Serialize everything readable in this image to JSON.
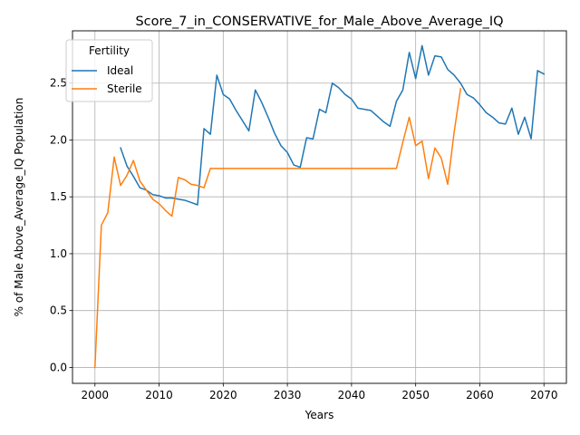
{
  "chart_data": {
    "type": "line",
    "title": "Score_7_in_CONSERVATIVE_for_Male_Above_Average_IQ",
    "xlabel": "Years",
    "ylabel": "% of Male Above_Average_IQ Population",
    "xlim": [
      1996.5,
      2073.5
    ],
    "ylim": [
      -0.14,
      2.96
    ],
    "xticks": [
      2000,
      2010,
      2020,
      2030,
      2040,
      2050,
      2060,
      2070
    ],
    "xtick_labels": [
      "2000",
      "2010",
      "2020",
      "2030",
      "2040",
      "2050",
      "2060",
      "2070"
    ],
    "yticks": [
      0.0,
      0.5,
      1.0,
      1.5,
      2.0,
      2.5
    ],
    "ytick_labels": [
      "0.0",
      "0.5",
      "1.0",
      "1.5",
      "2.0",
      "2.5"
    ],
    "grid": true,
    "legend": {
      "title": "Fertility",
      "position": "top-left"
    },
    "series": [
      {
        "name": "Ideal",
        "color": "#1f77b4",
        "x": [
          2004,
          2005,
          2006,
          2007,
          2008,
          2009,
          2010,
          2011,
          2012,
          2013,
          2014,
          2015,
          2016,
          2017,
          2018,
          2019,
          2020,
          2021,
          2022,
          2023,
          2024,
          2025,
          2026,
          2027,
          2028,
          2029,
          2030,
          2031,
          2032,
          2033,
          2034,
          2035,
          2036,
          2037,
          2038,
          2039,
          2040,
          2041,
          2042,
          2043,
          2044,
          2045,
          2046,
          2047,
          2048,
          2049,
          2050,
          2051,
          2052,
          2053,
          2054,
          2055,
          2056,
          2057,
          2058,
          2059,
          2060,
          2061,
          2062,
          2063,
          2064,
          2065,
          2066,
          2067,
          2068,
          2069,
          2070
        ],
        "y": [
          1.93,
          1.77,
          1.68,
          1.58,
          1.56,
          1.52,
          1.51,
          1.49,
          1.49,
          1.48,
          1.47,
          1.45,
          1.43,
          2.1,
          2.05,
          2.57,
          2.4,
          2.36,
          2.26,
          2.17,
          2.08,
          2.44,
          2.33,
          2.2,
          2.06,
          1.95,
          1.89,
          1.78,
          1.76,
          2.02,
          2.01,
          2.27,
          2.24,
          2.5,
          2.46,
          2.4,
          2.36,
          2.28,
          2.27,
          2.26,
          2.21,
          2.16,
          2.12,
          2.34,
          2.44,
          2.77,
          2.54,
          2.83,
          2.57,
          2.74,
          2.73,
          2.62,
          2.57,
          2.5,
          2.4,
          2.37,
          2.31,
          2.24,
          2.2,
          2.15,
          2.14,
          2.28,
          2.05,
          2.2,
          2.01,
          2.61,
          2.58
        ]
      },
      {
        "name": "Sterile",
        "color": "#ff7f0e",
        "x": [
          2000,
          2001,
          2002,
          2003,
          2004,
          2005,
          2006,
          2007,
          2008,
          2009,
          2010,
          2011,
          2012,
          2013,
          2014,
          2015,
          2016,
          2017,
          2018,
          2019,
          2020,
          2021,
          2022,
          2023,
          2024,
          2025,
          2026,
          2027,
          2028,
          2029,
          2030,
          2031,
          2032,
          2033,
          2034,
          2035,
          2036,
          2037,
          2038,
          2039,
          2040,
          2041,
          2042,
          2043,
          2044,
          2045,
          2046,
          2047,
          2048,
          2049,
          2050,
          2051,
          2052,
          2053,
          2054,
          2055,
          2056,
          2057
        ],
        "y": [
          0.0,
          1.25,
          1.36,
          1.85,
          1.6,
          1.69,
          1.82,
          1.64,
          1.56,
          1.48,
          1.44,
          1.38,
          1.33,
          1.67,
          1.65,
          1.61,
          1.6,
          1.58,
          1.75,
          1.75,
          1.75,
          1.75,
          1.75,
          1.75,
          1.75,
          1.75,
          1.75,
          1.75,
          1.75,
          1.75,
          1.75,
          1.75,
          1.75,
          1.75,
          1.75,
          1.75,
          1.75,
          1.75,
          1.75,
          1.75,
          1.75,
          1.75,
          1.75,
          1.75,
          1.75,
          1.75,
          1.75,
          1.75,
          1.98,
          2.2,
          1.95,
          1.99,
          1.66,
          1.93,
          1.84,
          1.61,
          2.07,
          2.45
        ]
      }
    ]
  }
}
